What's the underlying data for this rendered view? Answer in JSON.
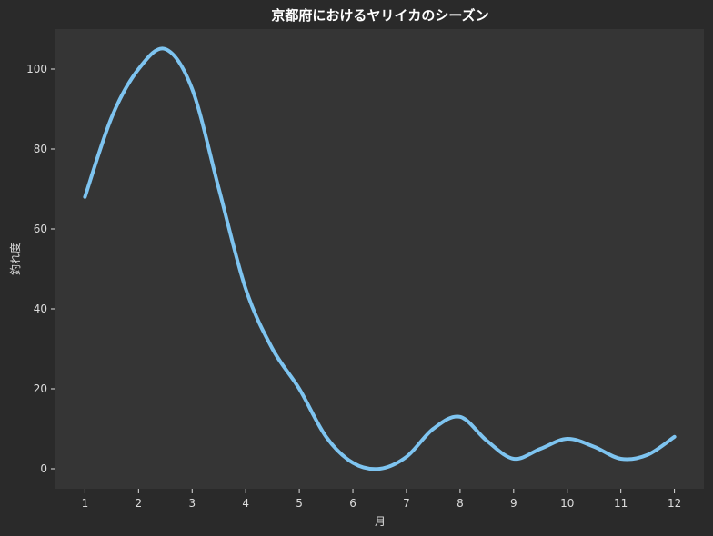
{
  "chart_data": {
    "type": "line",
    "title": "京都府におけるヤリイカのシーズン",
    "xlabel": "月",
    "ylabel": "釣れ度",
    "x": [
      1,
      2,
      3,
      4,
      5,
      6,
      7,
      8,
      9,
      10,
      11,
      12
    ],
    "xlim": [
      0.45,
      12.55
    ],
    "ylim": [
      -5,
      110
    ],
    "yticks": [
      0,
      20,
      40,
      60,
      80,
      100
    ],
    "series": [
      {
        "color": "#7ec4f0",
        "points": [
          [
            1,
            68
          ],
          [
            1.5,
            88
          ],
          [
            2,
            100
          ],
          [
            2.5,
            105
          ],
          [
            3,
            95
          ],
          [
            3.5,
            70
          ],
          [
            4,
            45
          ],
          [
            4.5,
            30
          ],
          [
            5,
            20
          ],
          [
            5.5,
            8
          ],
          [
            6,
            1.5
          ],
          [
            6.5,
            0
          ],
          [
            7,
            3
          ],
          [
            7.5,
            10
          ],
          [
            8,
            13
          ],
          [
            8.5,
            7
          ],
          [
            9,
            2.5
          ],
          [
            9.5,
            5
          ],
          [
            10,
            7.5
          ],
          [
            10.5,
            5.5
          ],
          [
            11,
            2.5
          ],
          [
            11.5,
            3.5
          ],
          [
            12,
            8
          ]
        ]
      }
    ],
    "background": "#2a2a2a",
    "plot_background": "#353535",
    "grid": false
  }
}
